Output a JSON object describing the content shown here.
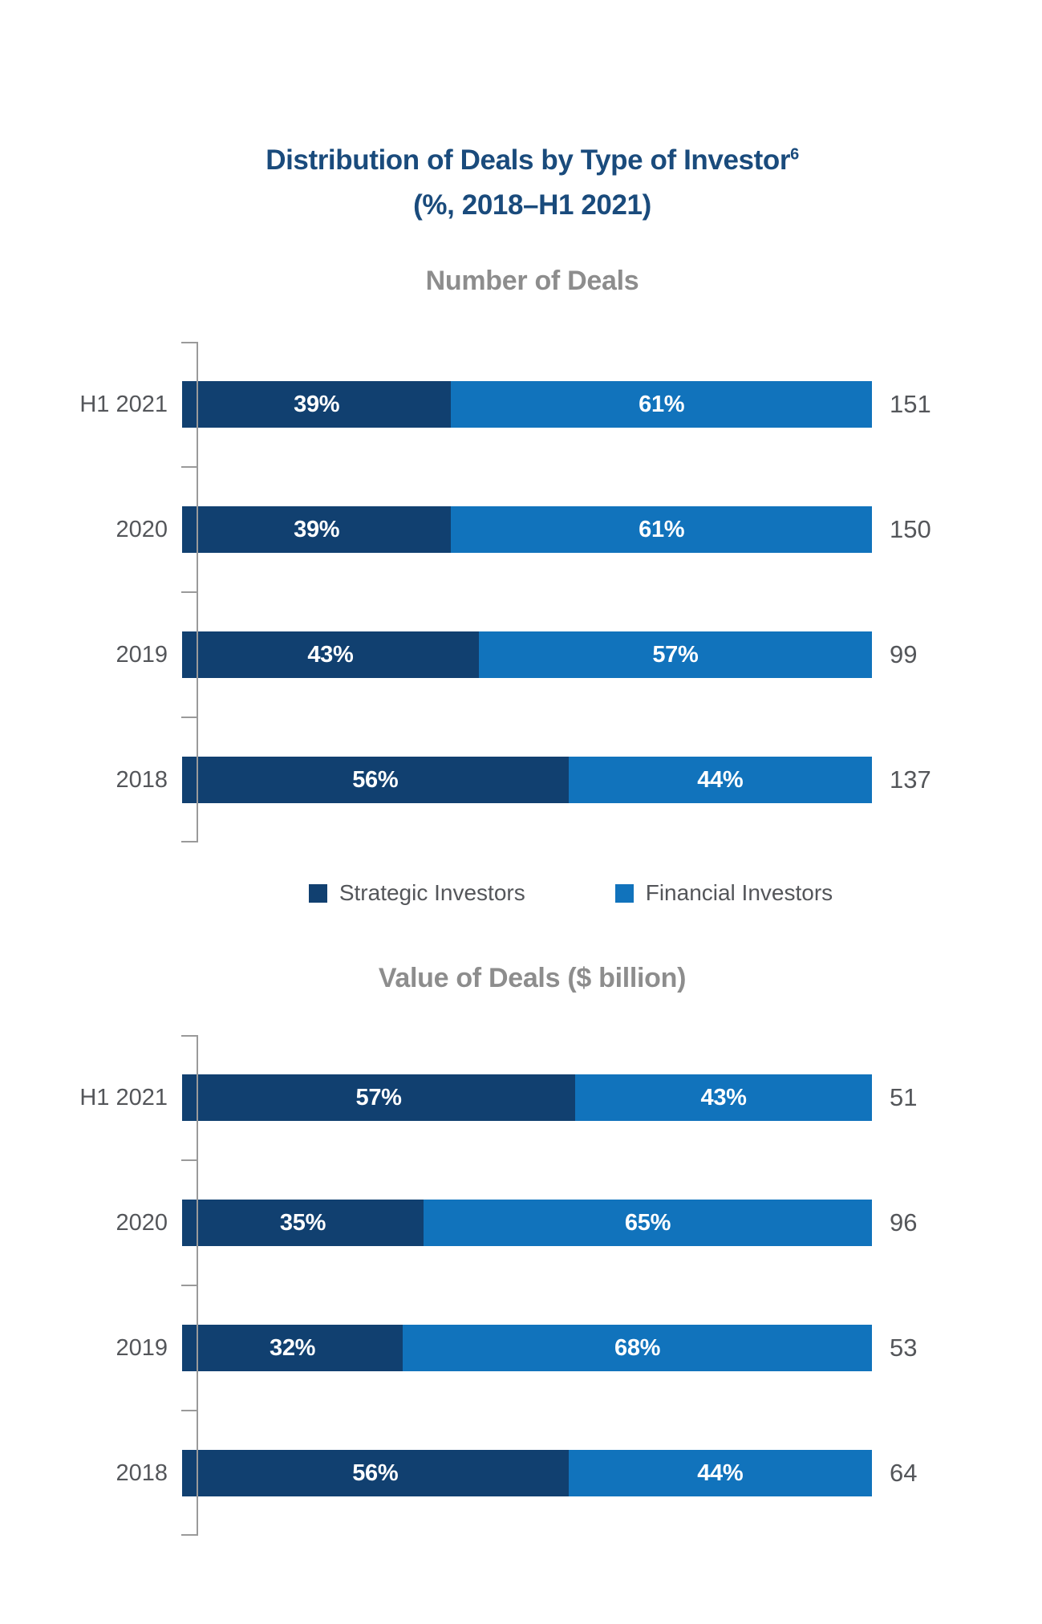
{
  "page": {
    "title_line1": "Distribution of Deals by Type of Investor",
    "title_superscript": "6",
    "title_line2": "(%, 2018–H1 2021)"
  },
  "colors": {
    "strategic": "#114070",
    "financial": "#1173BC",
    "title_navy": "#1A4B7C",
    "section_gray": "#8D8D8D",
    "label_gray": "#54565A",
    "axis_gray": "#9A9A9A"
  },
  "legend": {
    "items": [
      {
        "label": "Strategic Investors",
        "color": "#114070"
      },
      {
        "label": "Financial Investors",
        "color": "#1173BC"
      }
    ]
  },
  "chart_data": [
    {
      "type": "bar",
      "variant": "horizontal-stacked-100pct",
      "title": "Number of Deals",
      "categories": [
        "H1 2021",
        "2020",
        "2019",
        "2018"
      ],
      "series": [
        {
          "name": "Strategic Investors",
          "color": "#114070",
          "values": [
            39,
            39,
            43,
            56
          ]
        },
        {
          "name": "Financial Investors",
          "color": "#1173BC",
          "values": [
            61,
            61,
            57,
            44
          ]
        }
      ],
      "totals": [
        151,
        150,
        99,
        137
      ],
      "unit": "%",
      "xlim": [
        0,
        100
      ],
      "grid": false,
      "legend_position": "below"
    },
    {
      "type": "bar",
      "variant": "horizontal-stacked-100pct",
      "title": "Value of Deals ($ billion)",
      "categories": [
        "H1 2021",
        "2020",
        "2019",
        "2018"
      ],
      "series": [
        {
          "name": "Strategic Investors",
          "color": "#114070",
          "values": [
            57,
            35,
            32,
            56
          ]
        },
        {
          "name": "Financial Investors",
          "color": "#1173BC",
          "values": [
            43,
            65,
            68,
            44
          ]
        }
      ],
      "totals": [
        51,
        96,
        53,
        64
      ],
      "unit": "%",
      "xlim": [
        0,
        100
      ],
      "grid": false,
      "legend_position": "none"
    }
  ]
}
